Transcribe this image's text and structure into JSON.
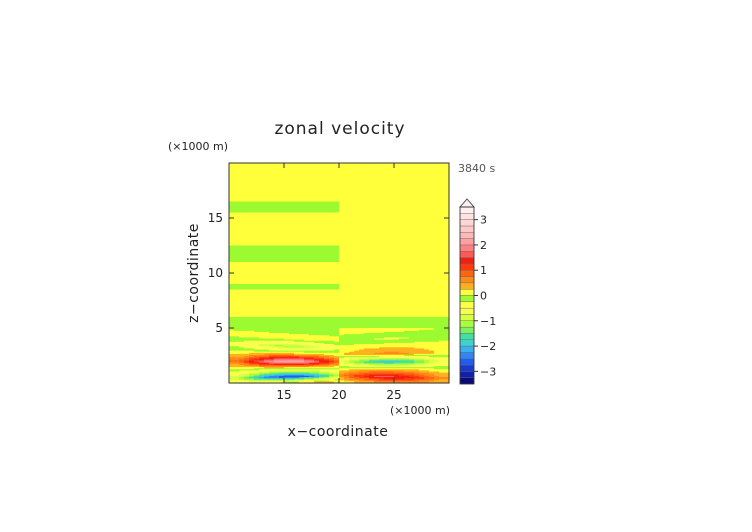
{
  "chart_data": {
    "type": "heatmap",
    "title": "zonal velocity",
    "xlabel": "x−coordinate",
    "ylabel": "z−coordinate",
    "x_unit": "(×1000 m)",
    "y_unit": "(×1000 m)",
    "time_label": "3840 s",
    "xlim": [
      10,
      30
    ],
    "ylim": [
      0,
      20
    ],
    "x_ticks": [
      "15",
      "20",
      "25"
    ],
    "y_ticks": [
      "5",
      "10",
      "15"
    ],
    "colorbar": {
      "levels": [
        -3.5,
        -3.25,
        -3,
        -2.75,
        -2.5,
        -2.25,
        -2,
        -1.75,
        -1.5,
        -1.25,
        -1,
        -0.75,
        -0.5,
        -0.25,
        0,
        0.25,
        0.5,
        0.75,
        1,
        1.25,
        1.5,
        1.75,
        2,
        2.25,
        2.5,
        2.75,
        3,
        3.25,
        3.5
      ],
      "tick_labels": [
        "3",
        "2",
        "1",
        "0",
        "−1",
        "−2",
        "−3"
      ],
      "tick_values": [
        3,
        2,
        1,
        0,
        -1,
        -2,
        -3
      ],
      "extend": "max"
    },
    "bands_upper": [
      {
        "z": [
          19,
          20
        ],
        "left": 0.05,
        "right": 0.05
      },
      {
        "z": [
          16.5,
          19
        ],
        "left": 0.05,
        "right": 0.05
      },
      {
        "z": [
          15.5,
          16.5
        ],
        "left": -0.05,
        "right": 0.05
      },
      {
        "z": [
          12.5,
          15.5
        ],
        "left": 0.05,
        "right": 0.05
      },
      {
        "z": [
          11,
          12.5
        ],
        "left": -0.05,
        "right": 0.05
      },
      {
        "z": [
          9,
          11
        ],
        "left": 0.05,
        "right": 0.05
      },
      {
        "z": [
          8.5,
          9
        ],
        "left": -0.05,
        "right": 0.05
      },
      {
        "z": [
          6,
          8.5
        ],
        "left": 0.05,
        "right": 0.05
      },
      {
        "z": [
          5,
          6
        ],
        "left": -0.05,
        "right": -0.05
      }
    ],
    "wave_region": {
      "z": [
        0,
        5
      ],
      "center_x": 20,
      "levels": [
        {
          "z": 0.2,
          "left": 0.6,
          "right": 0.4
        },
        {
          "z": 0.8,
          "left": -2.8,
          "right": 1.6
        },
        {
          "z": 1.5,
          "left": -0.3,
          "right": 0.3
        },
        {
          "z": 2.2,
          "left": 2.3,
          "right": -2.0
        },
        {
          "z": 2.9,
          "left": 0.4,
          "right": 0.6
        },
        {
          "z": 3.6,
          "left": -1.1,
          "right": 0.2
        },
        {
          "z": 4.3,
          "left": 0.1,
          "right": -0.3
        },
        {
          "z": 5.0,
          "left": -0.05,
          "right": 0.05
        }
      ]
    }
  }
}
